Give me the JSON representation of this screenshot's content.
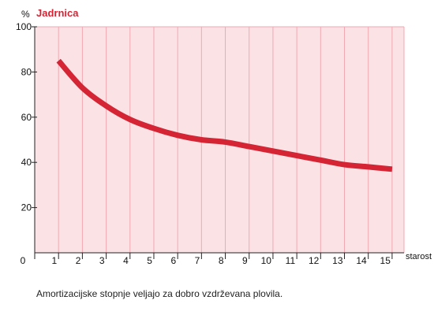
{
  "chart_data": {
    "type": "line",
    "title": "Jadrnica",
    "ylabel": "%",
    "xlabel": "starost",
    "ylim": [
      0,
      100
    ],
    "xlim": [
      0,
      15.5
    ],
    "y_ticks": [
      "100",
      "80",
      "60",
      "40",
      "20"
    ],
    "x_ticks": [
      "0",
      "1",
      "2",
      "3",
      "4",
      "5",
      "6",
      "7",
      "8",
      "9",
      "10",
      "11",
      "12",
      "13",
      "14",
      "15"
    ],
    "series": [
      {
        "x": [
          1,
          2,
          3,
          4,
          5,
          6,
          7,
          8,
          9,
          10,
          11,
          12,
          13,
          14,
          15
        ],
        "values": [
          85,
          73,
          65,
          59,
          55,
          52,
          50,
          49,
          47,
          45,
          43,
          41,
          39,
          38,
          37
        ]
      }
    ],
    "grid": true
  },
  "colors": {
    "plot_background": "#fbe2e5",
    "grid": "#f2a8b2",
    "line": "#d52434",
    "title": "#d52434"
  },
  "caption": "Amortizacijske stopnje veljajo za dobro vzdrževana plovila."
}
